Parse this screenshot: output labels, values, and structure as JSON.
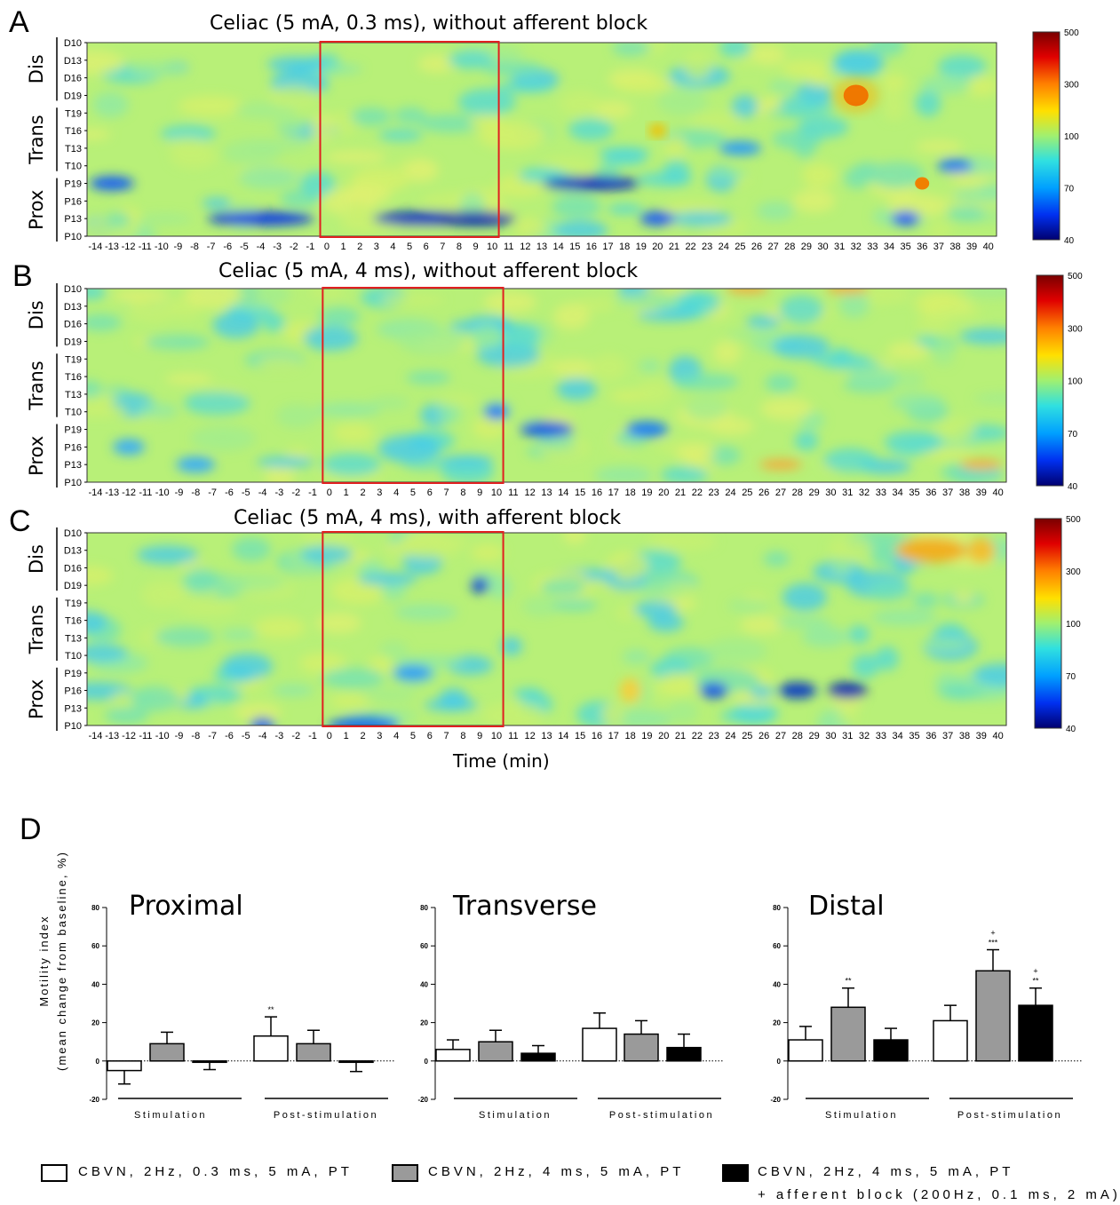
{
  "panels": [
    {
      "letter": "A",
      "title": "Celiac (5 mA, 0.3 ms), without afferent block"
    },
    {
      "letter": "B",
      "title": "Celiac (5 mA, 4 ms), without afferent block"
    },
    {
      "letter": "C",
      "title": "Celiac (5 mA, 4 ms), with afferent block"
    }
  ],
  "panel_d_letter": "D",
  "heatmap_rows": [
    "D10",
    "D13",
    "D16",
    "D19",
    "T19",
    "T16",
    "T13",
    "T10",
    "P19",
    "P16",
    "P13",
    "P10"
  ],
  "region_labels": [
    "Dis",
    "Trans",
    "Prox"
  ],
  "time_ticks": [
    "-14",
    "-13",
    "-12",
    "-11",
    "-10",
    "-9",
    "-8",
    "-7",
    "-6",
    "-5",
    "-4",
    "-3",
    "-2",
    "-1",
    "0",
    "1",
    "2",
    "3",
    "4",
    "5",
    "6",
    "7",
    "8",
    "9",
    "10",
    "11",
    "12",
    "13",
    "14",
    "15",
    "16",
    "17",
    "18",
    "19",
    "20",
    "21",
    "22",
    "23",
    "24",
    "25",
    "26",
    "27",
    "28",
    "29",
    "30",
    "31",
    "32",
    "33",
    "34",
    "35",
    "36",
    "37",
    "38",
    "39",
    "40"
  ],
  "time_axis_label": "Time (min)",
  "colorbar_ticks": [
    "500",
    "300",
    "100",
    "70",
    "40"
  ],
  "stim_window_min": [
    0,
    10
  ],
  "colors": {
    "stim_box": "#e02020",
    "bar_open": "#ffffff",
    "bar_gray": "#9a9a9a",
    "bar_black": "#000000"
  },
  "chart_data": [
    {
      "type": "heatmap",
      "title": "Celiac (5 mA, 0.3 ms), without afferent block",
      "xlabel": "",
      "rows": [
        "D10",
        "D13",
        "D16",
        "D19",
        "T19",
        "T16",
        "T13",
        "T10",
        "P19",
        "P16",
        "P13",
        "P10"
      ],
      "x_range_min": [
        -14,
        40
      ],
      "color_scale": [
        40,
        500
      ],
      "notable": "strong decrease (blue) at P13 during stimulation 0-10 min; hot spot ~300 at D19 near 32 min"
    },
    {
      "type": "heatmap",
      "title": "Celiac (5 mA, 4 ms), without afferent block",
      "xlabel": "",
      "rows": [
        "D10",
        "D13",
        "D16",
        "D19",
        "T19",
        "T16",
        "T13",
        "T10",
        "P19",
        "P16",
        "P13",
        "P10"
      ],
      "x_range_min": [
        -14,
        40
      ],
      "color_scale": [
        40,
        500
      ]
    },
    {
      "type": "heatmap",
      "title": "Celiac (5 mA, 4 ms), with afferent block",
      "xlabel": "Time (min)",
      "rows": [
        "D10",
        "D13",
        "D16",
        "D19",
        "T19",
        "T16",
        "T13",
        "T10",
        "P19",
        "P16",
        "P13",
        "P10"
      ],
      "x_range_min": [
        -14,
        40
      ],
      "color_scale": [
        40,
        500
      ]
    },
    {
      "type": "bar",
      "title": "Proximal",
      "ylabel": "Motility index (mean change from baseline, %)",
      "ylim": [
        -20,
        80
      ],
      "yticks": [
        "80",
        "60",
        "40",
        "20",
        "0",
        "-20"
      ],
      "groups": [
        "Stimulation",
        "Post-stimulation"
      ],
      "series": [
        {
          "name": "CBVN, 2Hz, 0.3 ms, 5 mA, PT",
          "values": [
            -5,
            13
          ],
          "errors": [
            7,
            10
          ],
          "marks": [
            "",
            "**"
          ]
        },
        {
          "name": "CBVN, 2Hz, 4 ms, 5 mA, PT",
          "values": [
            9,
            9
          ],
          "errors": [
            6,
            7
          ],
          "marks": [
            "",
            ""
          ]
        },
        {
          "name": "CBVN, 2Hz, 4 ms, 5 mA, PT + afferent block (200Hz, 0.1 ms, 2 mA)",
          "values": [
            -0.5,
            -0.5
          ],
          "errors": [
            4,
            5
          ],
          "marks": [
            "",
            ""
          ]
        }
      ]
    },
    {
      "type": "bar",
      "title": "Transverse",
      "ylabel": "",
      "ylim": [
        -20,
        80
      ],
      "yticks": [
        "80",
        "60",
        "40",
        "20",
        "0",
        "-20"
      ],
      "groups": [
        "Stimulation",
        "Post-stimulation"
      ],
      "series": [
        {
          "name": "CBVN, 2Hz, 0.3 ms, 5 mA, PT",
          "values": [
            6,
            17
          ],
          "errors": [
            5,
            8
          ],
          "marks": [
            "",
            ""
          ]
        },
        {
          "name": "CBVN, 2Hz, 4 ms, 5 mA, PT",
          "values": [
            10,
            14
          ],
          "errors": [
            6,
            7
          ],
          "marks": [
            "",
            ""
          ]
        },
        {
          "name": "CBVN, 2Hz, 4 ms, 5 mA, PT + afferent block (200Hz, 0.1 ms, 2 mA)",
          "values": [
            4,
            7
          ],
          "errors": [
            4,
            7
          ],
          "marks": [
            "",
            ""
          ]
        }
      ]
    },
    {
      "type": "bar",
      "title": "Distal",
      "ylabel": "",
      "ylim": [
        -20,
        80
      ],
      "yticks": [
        "80",
        "60",
        "40",
        "20",
        "0",
        "-20"
      ],
      "groups": [
        "Stimulation",
        "Post-stimulation"
      ],
      "series": [
        {
          "name": "CBVN, 2Hz, 0.3 ms, 5 mA, PT",
          "values": [
            11,
            21
          ],
          "errors": [
            7,
            8
          ],
          "marks": [
            "",
            ""
          ]
        },
        {
          "name": "CBVN, 2Hz, 4 ms, 5 mA, PT",
          "values": [
            28,
            47
          ],
          "errors": [
            10,
            11
          ],
          "marks": [
            "**",
            "***|+"
          ]
        },
        {
          "name": "CBVN, 2Hz, 4 ms, 5 mA, PT + afferent block (200Hz, 0.1 ms, 2 mA)",
          "values": [
            11,
            29
          ],
          "errors": [
            6,
            9
          ],
          "marks": [
            "",
            "**|+"
          ]
        }
      ]
    }
  ],
  "bar_ylabel_lines": [
    "Motility index",
    "(mean change from baseline, %)"
  ],
  "group_labels": [
    "Stimulation",
    "Post-stimulation"
  ],
  "legend": [
    {
      "label": "CBVN, 2Hz, 0.3 ms, 5 mA, PT"
    },
    {
      "label": "CBVN, 2Hz, 4 ms, 5 mA, PT"
    },
    {
      "label": "CBVN, 2Hz, 4 ms, 5 mA, PT",
      "label2": "+ afferent block (200Hz, 0.1 ms, 2 mA)"
    }
  ]
}
